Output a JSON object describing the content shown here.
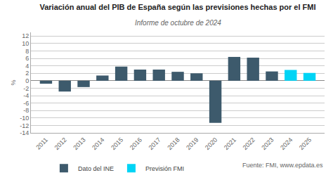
{
  "chart_data": {
    "type": "bar",
    "title": "Variación anual del PIB de España según las previsiones hechas por el FMI",
    "subtitle": "Informe de octubre de 2024",
    "ylabel": "%",
    "annotations": [
      "Fuente: FMI, www.epdata.es"
    ],
    "x": [
      2011,
      2012,
      2013,
      2014,
      2015,
      2016,
      2017,
      2018,
      2019,
      2020,
      2021,
      2022,
      2023,
      2024,
      2025
    ],
    "xlim": [
      2010.2,
      2025.8
    ],
    "xticks": [
      2011,
      2012,
      2013,
      2014,
      2015,
      2016,
      2017,
      2018,
      2019,
      2020,
      2021,
      2022,
      2023,
      2024,
      2025
    ],
    "series": [
      {
        "name": "Dato del INE",
        "color": "#3d5a6c",
        "values": [
          -0.8,
          -2.9,
          -1.7,
          1.4,
          3.8,
          3.0,
          3.0,
          2.4,
          2.0,
          -11.3,
          6.4,
          6.2,
          2.5,
          null,
          null
        ]
      },
      {
        "name": "Previsión FMI",
        "color": "#00d4f5",
        "values": [
          null,
          null,
          null,
          null,
          null,
          null,
          null,
          null,
          null,
          null,
          null,
          null,
          null,
          2.9,
          2.1
        ]
      }
    ],
    "ylim": [
      -14,
      13
    ],
    "yticks": [
      -14,
      -12,
      -10,
      -8,
      -6,
      -4,
      -2,
      0,
      2,
      4,
      6,
      8,
      10,
      12
    ],
    "grid": true,
    "legend": "bottom"
  }
}
